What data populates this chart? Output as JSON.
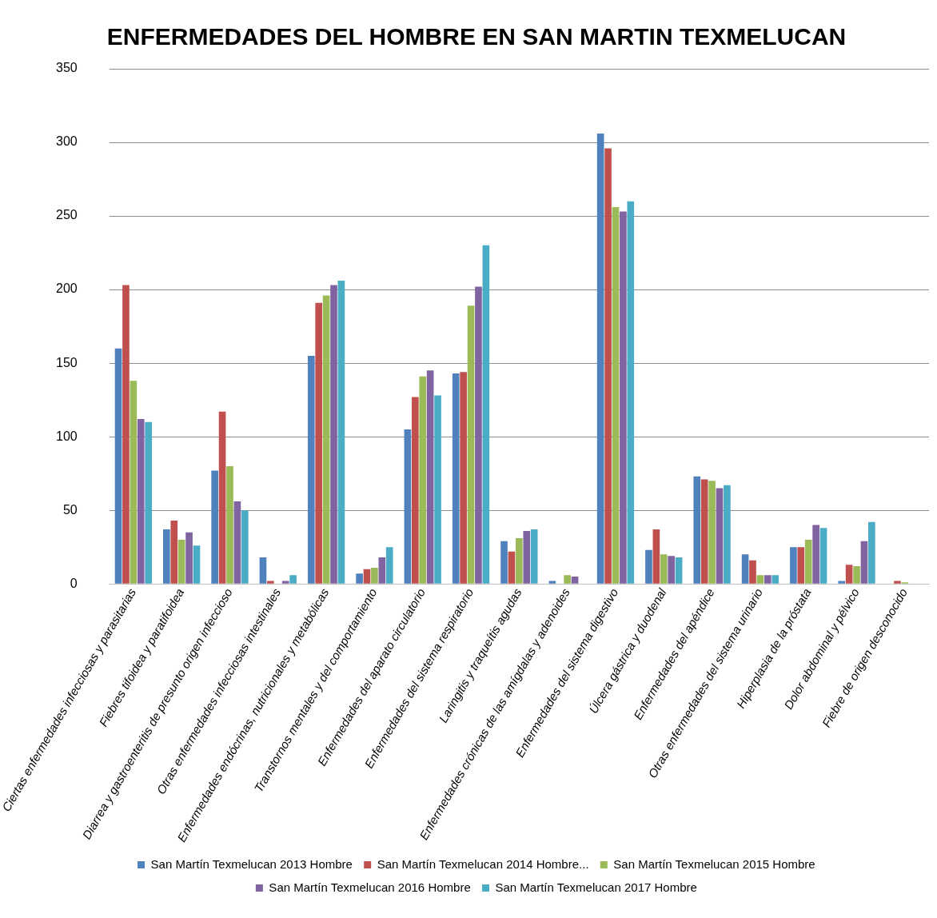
{
  "chart_data": {
    "type": "bar",
    "title": "ENFERMEDADES DEL HOMBRE EN SAN MARTIN TEXMELUCAN",
    "categories": [
      "Ciertas enfermedades infecciosas y parasitarias",
      "Fiebres tifoidea y paratifoidea",
      "Diarrea y gastroenteritis de presunto origen infeccioso",
      "Otras enfermedades infecciosas intestinales",
      "Enfermedades endócrinas, nutricionales y metabólicas",
      "Transtornos mentales y del comportamiento",
      "Enfermedades del aparato circulatorio",
      "Enfermedades del sistema respiratorio",
      "Laringitis y traqueítis agudas",
      "Enfermedades crónicas de las amígdalas y adenoides",
      "Enfermedades del sistema digestivo",
      "Úlcera gástrica y duodenal",
      "Enfermedades del apéndice",
      "Otras enfermedades del sistema urinario",
      "Hiperplasia de la próstata",
      "Dolor abdominal y pélvico",
      "Fiebre de origen desconocido"
    ],
    "series": [
      {
        "name": "San Martín Texmelucan 2013 Hombre",
        "color": "#4f81bd",
        "values": [
          160,
          37,
          77,
          18,
          155,
          7,
          105,
          143,
          29,
          2,
          306,
          23,
          73,
          20,
          25,
          2,
          0
        ]
      },
      {
        "name": "San Martín Texmelucan 2014 Hombre...",
        "color": "#c0504d",
        "values": [
          203,
          43,
          117,
          2,
          191,
          10,
          127,
          144,
          22,
          0,
          296,
          37,
          71,
          16,
          25,
          13,
          2
        ]
      },
      {
        "name": "San Martín Texmelucan 2015 Hombre",
        "color": "#9bbb59",
        "values": [
          138,
          30,
          80,
          0,
          196,
          11,
          141,
          189,
          31,
          6,
          256,
          20,
          70,
          6,
          30,
          12,
          1
        ]
      },
      {
        "name": "San Martín Texmelucan 2016 Hombre",
        "color": "#8064a2",
        "values": [
          112,
          35,
          56,
          2,
          203,
          18,
          145,
          202,
          36,
          5,
          253,
          19,
          65,
          6,
          40,
          29,
          0
        ]
      },
      {
        "name": "San Martín Texmelucan 2017 Hombre",
        "color": "#4bacc6",
        "values": [
          110,
          26,
          50,
          6,
          206,
          25,
          128,
          230,
          37,
          0,
          260,
          18,
          67,
          6,
          38,
          42,
          0
        ]
      }
    ],
    "ylim": [
      0,
      350
    ],
    "yticks": [
      0,
      50,
      100,
      150,
      200,
      250,
      300,
      350
    ],
    "grid": "y",
    "legend": "bottom"
  }
}
